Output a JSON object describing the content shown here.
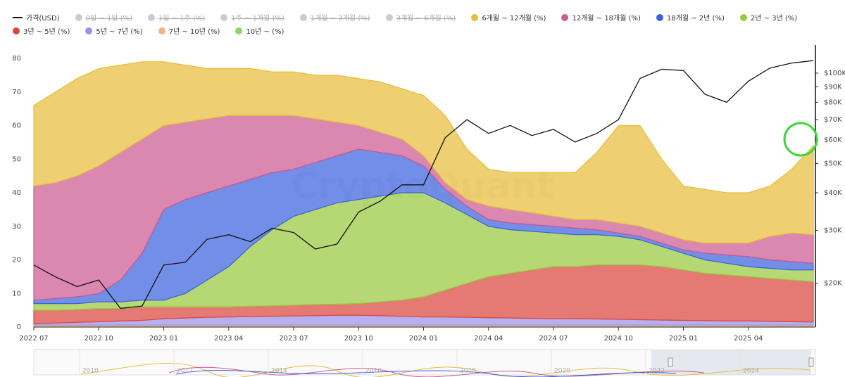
{
  "chart_data": {
    "type": "stacked_area",
    "x": [
      "2022-07",
      "2022-08",
      "2022-09",
      "2022-10",
      "2022-11",
      "2022-12",
      "2023-01",
      "2023-02",
      "2023-03",
      "2023-04",
      "2023-05",
      "2023-06",
      "2023-07",
      "2023-08",
      "2023-09",
      "2023-10",
      "2023-11",
      "2023-12",
      "2024-01",
      "2024-02",
      "2024-03",
      "2024-04",
      "2024-05",
      "2024-06",
      "2024-07",
      "2024-08",
      "2024-09",
      "2024-10",
      "2024-11",
      "2024-12",
      "2025-01",
      "2025-02",
      "2025-03",
      "2025-04",
      "2025-05",
      "2025-06",
      "2025-07"
    ],
    "xticks": [
      {
        "value": "2022-07",
        "label": "2022 07"
      },
      {
        "value": "2022-10",
        "label": "2022 10"
      },
      {
        "value": "2023-01",
        "label": "2023 01"
      },
      {
        "value": "2023-04",
        "label": "2023 04"
      },
      {
        "value": "2023-07",
        "label": "2023 07"
      },
      {
        "value": "2023-10",
        "label": "2023 10"
      },
      {
        "value": "2024-01",
        "label": "2024 01"
      },
      {
        "value": "2024-04",
        "label": "2024 04"
      },
      {
        "value": "2024-07",
        "label": "2024 07"
      },
      {
        "value": "2024-10",
        "label": "2024 10"
      },
      {
        "value": "2025-01",
        "label": "2025 01"
      },
      {
        "value": "2025-04",
        "label": "2025 04"
      }
    ],
    "ylim": [
      0,
      84
    ],
    "yticks": [
      0,
      10,
      20,
      30,
      40,
      50,
      60,
      70,
      80
    ],
    "y2lim": [
      14300,
      124000
    ],
    "y2log": true,
    "y2ticks": [
      {
        "value": 20000,
        "label": "$20K"
      },
      {
        "value": 30000,
        "label": "$30K"
      },
      {
        "value": 40000,
        "label": "$40K"
      },
      {
        "value": 50000,
        "label": "$50K"
      },
      {
        "value": 60000,
        "label": "$60K"
      },
      {
        "value": 70000,
        "label": "$70K"
      },
      {
        "value": 80000,
        "label": "$80K"
      },
      {
        "value": 90000,
        "label": "$90K"
      },
      {
        "value": 100000,
        "label": "$100K"
      }
    ],
    "series": [
      {
        "name": "가격(USD)",
        "color": "#111111",
        "axis": "y2",
        "values": [
          23000,
          21000,
          19500,
          20500,
          16500,
          16800,
          23000,
          23500,
          28000,
          29000,
          27500,
          30500,
          29500,
          26000,
          27000,
          34500,
          37500,
          42500,
          42500,
          61000,
          70000,
          63000,
          67000,
          62000,
          65000,
          59000,
          63000,
          70000,
          96000,
          103000,
          102000,
          85000,
          80000,
          94000,
          104000,
          108000,
          110000
        ]
      },
      {
        "name": "6개월 ~ 12개월 (%)",
        "color": "#e8bd3a",
        "values": [
          24,
          27,
          29,
          29,
          26,
          23,
          19,
          17,
          15,
          14,
          14,
          13,
          13,
          13,
          14,
          14,
          15,
          15,
          18,
          20,
          15,
          11,
          11,
          12,
          13,
          14,
          20,
          29,
          30,
          22,
          16,
          16,
          15,
          15,
          15,
          19,
          26.5
        ]
      },
      {
        "name": "12개월 ~ 18개월 (%)",
        "color": "#cc5a92",
        "values": [
          34,
          34.5,
          36,
          38,
          38,
          34,
          25,
          23,
          22,
          21,
          19,
          17,
          16,
          13,
          10,
          7,
          6,
          5,
          3,
          2,
          2,
          4,
          4,
          3.5,
          3,
          2.5,
          3,
          3,
          3,
          3,
          3,
          3,
          3.5,
          4,
          7,
          8.5,
          8.5
        ]
      },
      {
        "name": "18개월 ~ 2년 (%)",
        "color": "#3b63dc",
        "values": [
          1,
          1.5,
          2,
          2.5,
          6.5,
          14,
          27,
          28,
          26,
          24,
          20,
          17,
          14,
          14,
          14,
          15,
          13,
          11,
          8,
          4,
          2.5,
          2,
          2,
          2,
          2,
          2,
          1.5,
          1,
          1,
          1,
          1,
          2,
          2.5,
          3,
          2.5,
          2.5,
          2
        ]
      },
      {
        "name": "2년 ~ 3년 (%)",
        "color": "#98c940",
        "values": [
          2,
          2,
          1.8,
          2,
          2,
          2,
          2,
          4,
          8,
          12,
          17.8,
          22.7,
          26.5,
          28.3,
          30.2,
          31,
          31.5,
          32,
          31,
          26,
          20.5,
          15,
          13,
          11.5,
          10,
          9.5,
          9,
          8.5,
          7.5,
          6,
          5,
          4,
          3.5,
          3,
          3,
          3,
          3.5
        ]
      },
      {
        "name": "3년 ~ 5년 (%)",
        "color": "#d9473d",
        "values": [
          4,
          3.8,
          3.8,
          3.9,
          3.7,
          4,
          3.5,
          3.3,
          3.1,
          3,
          3.1,
          3.1,
          3.2,
          3.3,
          3.3,
          3.5,
          4.1,
          4.8,
          6,
          8,
          10.1,
          12.2,
          13.3,
          14.4,
          15.5,
          15.5,
          16.1,
          16.2,
          16.3,
          15.9,
          15,
          14.1,
          13.7,
          13.2,
          12.8,
          12.4,
          12
        ]
      },
      {
        "name": "5년 ~ 7년 (%)",
        "color": "#9d90ec",
        "values": [
          0.4,
          0.6,
          0.8,
          1,
          1.2,
          1.4,
          1.9,
          2.1,
          2.3,
          2.4,
          2.5,
          2.6,
          2.7,
          2.8,
          2.9,
          2.9,
          2.8,
          2.6,
          2.4,
          2.4,
          2.3,
          2.2,
          2.1,
          2,
          1.9,
          1.9,
          1.8,
          1.7,
          1.6,
          1.5,
          1.4,
          1.3,
          1.2,
          1.2,
          1.1,
          1,
          0.9
        ]
      },
      {
        "name": "7년 ~ 10년 (%)",
        "color": "#f0b48c",
        "values": [
          0.3,
          0.3,
          0.3,
          0.3,
          0.3,
          0.3,
          0.3,
          0.3,
          0.3,
          0.3,
          0.3,
          0.3,
          0.3,
          0.3,
          0.3,
          0.3,
          0.3,
          0.3,
          0.3,
          0.3,
          0.3,
          0.3,
          0.3,
          0.3,
          0.3,
          0.3,
          0.3,
          0.3,
          0.3,
          0.3,
          0.3,
          0.3,
          0.3,
          0.3,
          0.3,
          0.3,
          0.3
        ]
      },
      {
        "name": "10년 ~ (%)",
        "color": "#8fd46a",
        "values": [
          0.3,
          0.3,
          0.3,
          0.3,
          0.3,
          0.3,
          0.3,
          0.3,
          0.3,
          0.3,
          0.3,
          0.3,
          0.3,
          0.3,
          0.3,
          0.3,
          0.3,
          0.3,
          0.3,
          0.3,
          0.3,
          0.3,
          0.3,
          0.3,
          0.3,
          0.3,
          0.3,
          0.3,
          0.3,
          0.3,
          0.3,
          0.3,
          0.3,
          0.3,
          0.3,
          0.3,
          0.3
        ]
      }
    ],
    "hidden_series": [
      {
        "name": "0일 ~ 1일 (%)",
        "color": "#cccccc"
      },
      {
        "name": "1일 ~ 1주 (%)",
        "color": "#cccccc"
      },
      {
        "name": "1주 ~ 1개월 (%)",
        "color": "#cccccc"
      },
      {
        "name": "1개월 ~ 3개월 (%)",
        "color": "#cccccc"
      },
      {
        "name": "3개월 ~ 6개월 (%)",
        "color": "#cccccc"
      }
    ],
    "watermark": "CryptoQuant",
    "navigator_labels": [
      "2010",
      "2012",
      "2014",
      "2016",
      "2018",
      "2020",
      "2022",
      "2024"
    ]
  }
}
